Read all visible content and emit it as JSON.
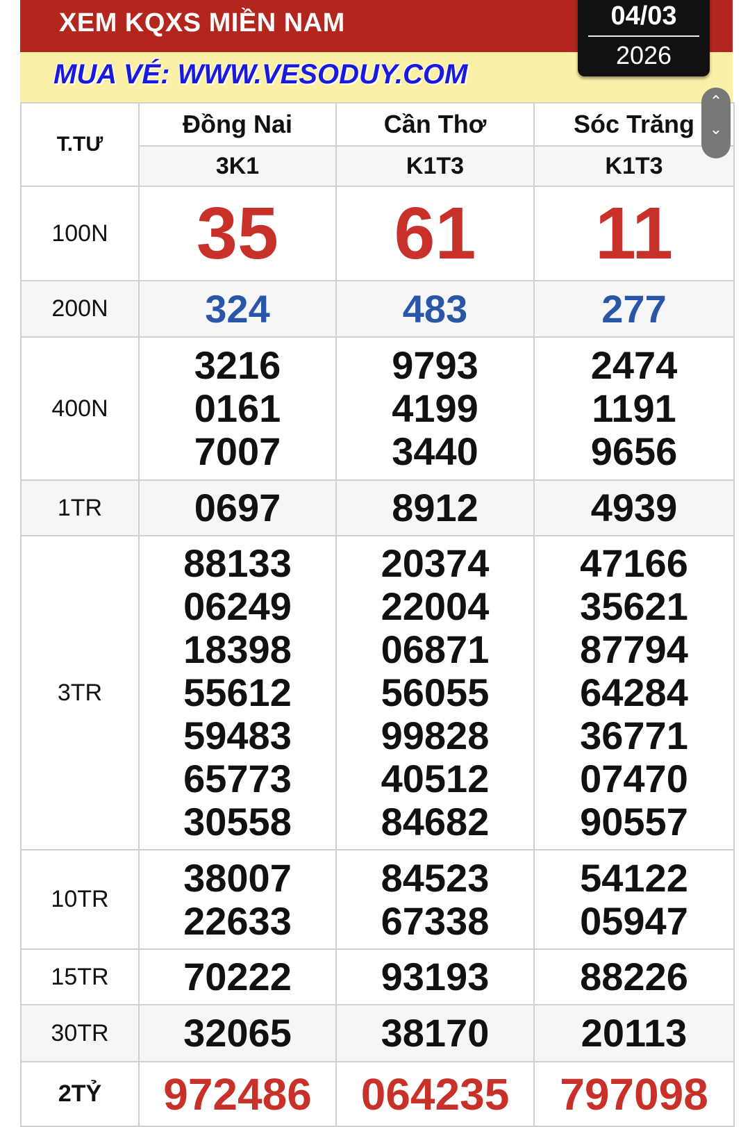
{
  "header": {
    "title": "XEM KQXS MIỀN NAM",
    "promo": "MUA VÉ: WWW.VESODUY.COM",
    "date_day_month": "04/03",
    "date_year": "2026"
  },
  "colors": {
    "header_red": "#b3261e",
    "promo_yellow": "#fbf0a6",
    "promo_blue": "#1a1adc",
    "special_red": "#c8312a",
    "prize8_red": "#c8312a",
    "prize7_blue": "#2a56a8"
  },
  "table": {
    "corner_label": "T.TƯ",
    "provinces": [
      {
        "name": "Đồng Nai",
        "code": "3K1"
      },
      {
        "name": "Cần Thơ",
        "code": "K1T3"
      },
      {
        "name": "Sóc Trăng",
        "code": "K1T3"
      }
    ],
    "rows": [
      {
        "label": "100N",
        "style": "g8",
        "values": [
          [
            "35"
          ],
          [
            "61"
          ],
          [
            "11"
          ]
        ]
      },
      {
        "label": "200N",
        "style": "g7",
        "values": [
          [
            "324"
          ],
          [
            "483"
          ],
          [
            "277"
          ]
        ]
      },
      {
        "label": "400N",
        "style": "normal",
        "values": [
          [
            "3216",
            "0161",
            "7007"
          ],
          [
            "9793",
            "4199",
            "3440"
          ],
          [
            "2474",
            "1191",
            "9656"
          ]
        ]
      },
      {
        "label": "1TR",
        "style": "normal",
        "values": [
          [
            "0697"
          ],
          [
            "8912"
          ],
          [
            "4939"
          ]
        ]
      },
      {
        "label": "3TR",
        "style": "normal",
        "values": [
          [
            "88133",
            "06249",
            "18398",
            "55612",
            "59483",
            "65773",
            "30558"
          ],
          [
            "20374",
            "22004",
            "06871",
            "56055",
            "99828",
            "40512",
            "84682"
          ],
          [
            "47166",
            "35621",
            "87794",
            "64284",
            "36771",
            "07470",
            "90557"
          ]
        ]
      },
      {
        "label": "10TR",
        "style": "normal",
        "values": [
          [
            "38007",
            "22633"
          ],
          [
            "84523",
            "67338"
          ],
          [
            "54122",
            "05947"
          ]
        ]
      },
      {
        "label": "15TR",
        "style": "normal",
        "values": [
          [
            "70222"
          ],
          [
            "93193"
          ],
          [
            "88226"
          ]
        ]
      },
      {
        "label": "30TR",
        "style": "normal",
        "values": [
          [
            "32065"
          ],
          [
            "38170"
          ],
          [
            "20113"
          ]
        ]
      },
      {
        "label": "2TỶ",
        "style": "special",
        "values": [
          [
            "972486"
          ],
          [
            "064235"
          ],
          [
            "797098"
          ]
        ]
      }
    ]
  },
  "scroll_control": {
    "up_icon": "chevron-up-icon",
    "down_icon": "chevron-down-icon"
  }
}
